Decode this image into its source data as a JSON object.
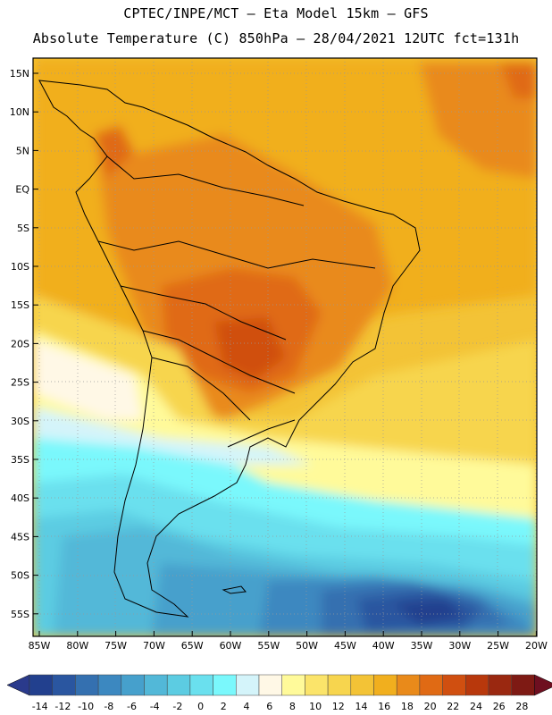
{
  "header": {
    "line1": "CPTEC/INPE/MCT –  Eta Model 15km – GFS",
    "line2": "Absolute Temperature (C) 850hPa – 28/04/2021 12UTC fct=131h"
  },
  "map": {
    "lat_labels": [
      "15N",
      "10N",
      "5N",
      "EQ",
      "5S",
      "10S",
      "15S",
      "20S",
      "25S",
      "30S",
      "35S",
      "40S",
      "45S",
      "50S",
      "55S"
    ],
    "lon_labels": [
      "85W",
      "80W",
      "75W",
      "70W",
      "65W",
      "60W",
      "55W",
      "50W",
      "45W",
      "40W",
      "35W",
      "30W",
      "25W",
      "20W"
    ]
  },
  "colorbar": {
    "labels": [
      "-14",
      "-12",
      "-10",
      "-8",
      "-6",
      "-4",
      "-2",
      "0",
      "2",
      "4",
      "6",
      "8",
      "10",
      "12",
      "14",
      "16",
      "18",
      "20",
      "22",
      "24",
      "26",
      "28"
    ],
    "under_color": "#2a3a8c",
    "over_color": "#6e0f20",
    "colors": [
      "#22408e",
      "#2a56a0",
      "#3470b0",
      "#3c88c0",
      "#46a0cc",
      "#52b8d8",
      "#5ccce2",
      "#6ae0ee",
      "#7af8fc",
      "#d4f4fa",
      "#fff8e6",
      "#fffa9a",
      "#fbe46a",
      "#f7d54e",
      "#f3c336",
      "#f1af1e",
      "#e98a1a",
      "#e06a14",
      "#d04f10",
      "#b8380c",
      "#9a2810",
      "#7e1a14"
    ]
  },
  "legend_colors": {
    "temp_28_32": "#d04f10",
    "temp_24_28": "#e06a14",
    "temp_20_24": "#e98a1a",
    "temp_16_20": "#f1af1e",
    "temp_12_16": "#f7d54e",
    "temp_8_12": "#fffa9a",
    "temp_4_8": "#fff8e6",
    "temp_0_4": "#d4f4fa",
    "temp_neg4_0": "#6ae0ee",
    "temp_neg8_neg4": "#46a0cc",
    "temp_neg12_neg8": "#3470b0",
    "temp_neg14": "#22408e"
  }
}
